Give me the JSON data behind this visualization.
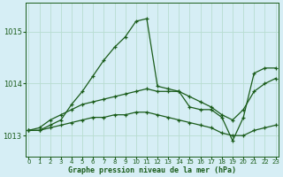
{
  "title": "Graphe pression niveau de la mer (hPa)",
  "bg_color": "#d6eef5",
  "grid_color": "#b8ddd0",
  "line_color": "#1a5c1a",
  "xlabel_color": "#1a5c1a",
  "x_ticks": [
    0,
    1,
    2,
    3,
    4,
    5,
    6,
    7,
    8,
    9,
    10,
    11,
    12,
    13,
    14,
    15,
    16,
    17,
    18,
    19,
    20,
    21,
    22,
    23
  ],
  "y_ticks": [
    1013,
    1014,
    1015
  ],
  "ylim": [
    1012.6,
    1015.55
  ],
  "xlim": [
    -0.3,
    23.3
  ],
  "s1": [
    1013.1,
    1013.1,
    1013.2,
    1013.3,
    1013.6,
    1013.85,
    1014.15,
    1014.45,
    1014.7,
    1014.9,
    1015.2,
    1015.25,
    1013.95,
    1013.9,
    1013.85,
    1013.55,
    1013.5,
    1013.5,
    1013.35,
    1012.9,
    1013.35,
    1014.2,
    1014.3,
    1014.3
  ],
  "s2": [
    1013.1,
    1013.15,
    1013.3,
    1013.4,
    1013.5,
    1013.6,
    1013.65,
    1013.7,
    1013.75,
    1013.8,
    1013.85,
    1013.9,
    1013.85,
    1013.85,
    1013.85,
    1013.75,
    1013.65,
    1013.55,
    1013.4,
    1013.3,
    1013.5,
    1013.85,
    1014.0,
    1014.1
  ],
  "s3": [
    1013.1,
    1013.1,
    1013.15,
    1013.2,
    1013.25,
    1013.3,
    1013.35,
    1013.35,
    1013.4,
    1013.4,
    1013.45,
    1013.45,
    1013.4,
    1013.35,
    1013.3,
    1013.25,
    1013.2,
    1013.15,
    1013.05,
    1013.0,
    1013.0,
    1013.1,
    1013.15,
    1013.2
  ],
  "title_fontsize": 6,
  "tick_fontsize": 5
}
